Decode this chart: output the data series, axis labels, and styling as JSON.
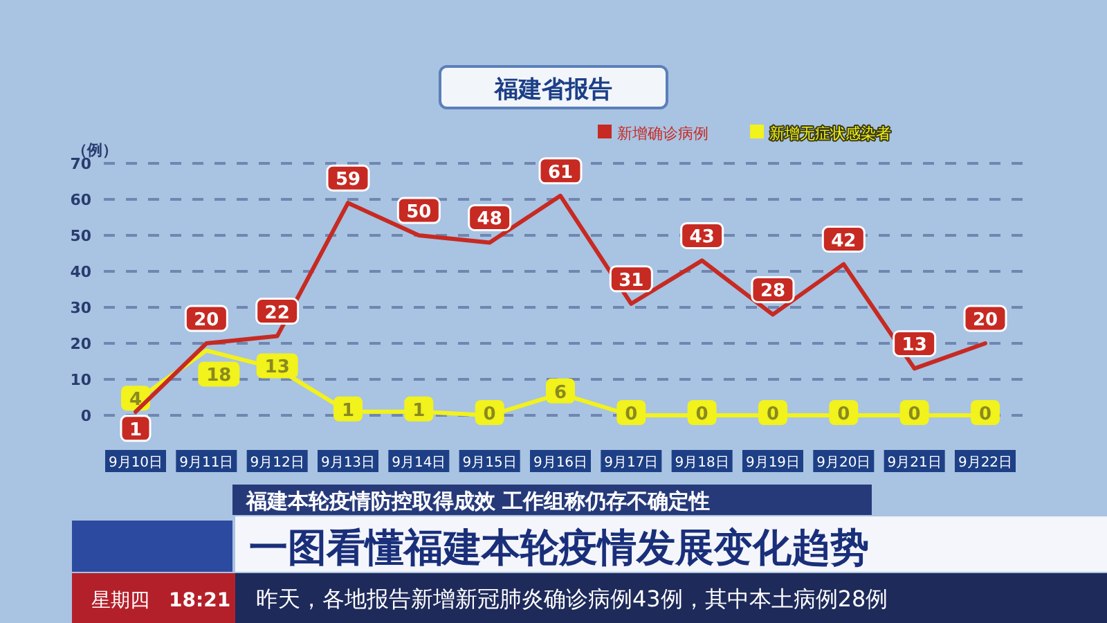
{
  "chart_data": {
    "type": "line",
    "title": "福建省报告",
    "ylabel": "（例）",
    "categories": [
      "9月10日",
      "9月11日",
      "9月12日",
      "9月13日",
      "9月14日",
      "9月15日",
      "9月16日",
      "9月17日",
      "9月18日",
      "9月19日",
      "9月20日",
      "9月21日",
      "9月22日"
    ],
    "series": [
      {
        "name": "新增确诊病例",
        "color": "#c62a22",
        "values": [
          1,
          20,
          22,
          59,
          50,
          48,
          61,
          31,
          43,
          28,
          42,
          13,
          20
        ]
      },
      {
        "name": "新增无症状感染者",
        "color": "#f2f21c",
        "values": [
          4,
          18,
          13,
          1,
          1,
          0,
          6,
          0,
          0,
          0,
          0,
          0,
          0
        ]
      }
    ],
    "ylim": [
      0,
      70
    ],
    "yticks": [
      0,
      10,
      20,
      30,
      40,
      50,
      60,
      70
    ],
    "grid": "y",
    "legend": "top right",
    "data_labels": true,
    "marker": "none",
    "line_style": "solid",
    "annotations": [
      "福建本轮疫情防控取得成效 工作组称仍存不确定性",
      "一图看懂福建本轮疫情发展变化趋势",
      "星期四",
      "18:21",
      "昨天，各地报告新增新冠肺炎确诊病例43例，其中本土病例28例"
    ]
  }
}
